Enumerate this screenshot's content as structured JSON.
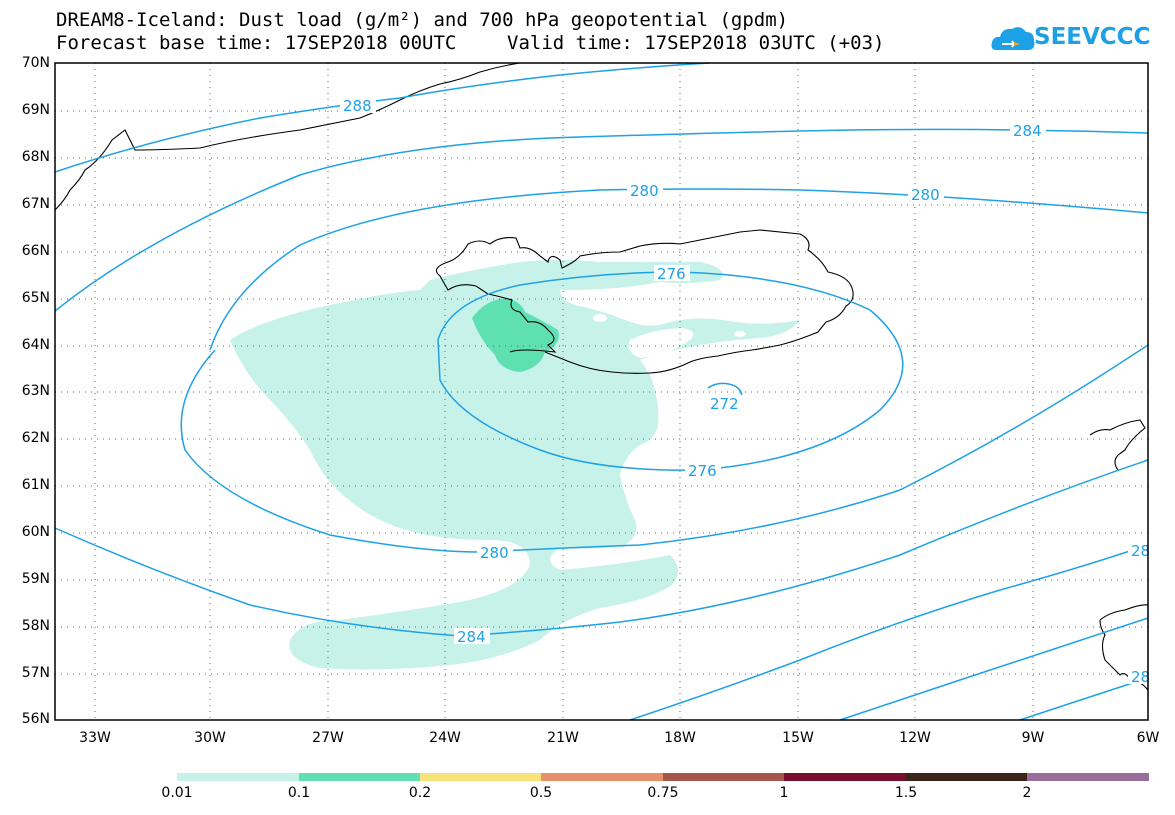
{
  "title": {
    "line1": "DREAM8-Iceland: Dust load (g/m²) and 700 hPa geopotential (gpdm)",
    "line2": "Forecast base time: 17SEP2018 00UTC",
    "valid": "Valid time: 17SEP2018 03UTC (+03)"
  },
  "logo": {
    "text": "SEEVCCC",
    "icon": "cloud-logo-icon",
    "color": "#1da1e6"
  },
  "axes": {
    "lat_labels": [
      "70N",
      "69N",
      "68N",
      "67N",
      "66N",
      "65N",
      "64N",
      "63N",
      "62N",
      "61N",
      "60N",
      "59N",
      "58N",
      "57N",
      "56N"
    ],
    "lon_labels": [
      "33W",
      "30W",
      "27W",
      "24W",
      "21W",
      "18W",
      "15W",
      "12W",
      "9W",
      "6W"
    ]
  },
  "contour_labels": [
    "288",
    "284",
    "280",
    "280",
    "276",
    "272",
    "276",
    "280",
    "284",
    "28",
    "28"
  ],
  "colorbar": {
    "labels": [
      "0.01",
      "0.1",
      "0.2",
      "0.5",
      "0.75",
      "1",
      "1.5",
      "2"
    ],
    "colors": [
      "#c6f2e9",
      "#5fe0b2",
      "#f6e47a",
      "#e7906b",
      "#a4574a",
      "#7a0e2e",
      "#3a2618",
      "#9a6e9a"
    ]
  },
  "dust_colors": {
    "light": "#c6f2e9",
    "medium": "#5fe0b2"
  },
  "contour_color": "#1ea1e6"
}
